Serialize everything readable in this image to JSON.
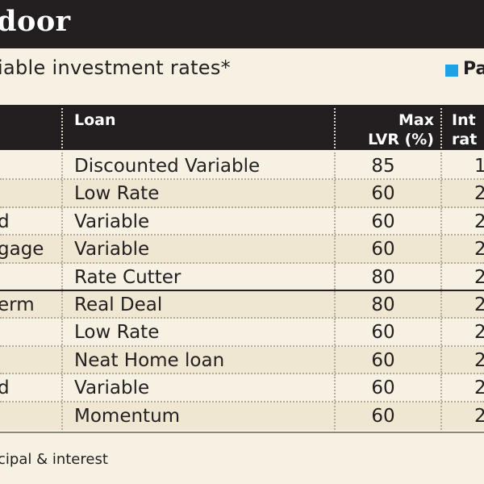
{
  "header": {
    "title": "door",
    "subtitle": "iable investment rates*",
    "legend_label": "Pa",
    "legend_color": "#1ba3e6"
  },
  "table": {
    "columns": {
      "loan": "Loan",
      "lvr_line1": "Max",
      "lvr_line2": "LVR (%)",
      "int_line1": "Int",
      "int_line2": "rat"
    },
    "rows": [
      {
        "name": "",
        "loan": "Discounted Variable",
        "lvr": "85",
        "rate": "1"
      },
      {
        "name": "",
        "loan": "Low Rate",
        "lvr": "60",
        "rate": "2"
      },
      {
        "name": "d",
        "loan": "Variable",
        "lvr": "60",
        "rate": "2"
      },
      {
        "name": "gage",
        "loan": "Variable",
        "lvr": "60",
        "rate": "2"
      },
      {
        "name": "",
        "loan": "Rate Cutter",
        "lvr": "80",
        "rate": "2"
      },
      {
        "name": "erm",
        "loan": "Real Deal",
        "lvr": "80",
        "rate": "2"
      },
      {
        "name": "",
        "loan": "Low Rate",
        "lvr": "60",
        "rate": "2"
      },
      {
        "name": "",
        "loan": "Neat Home loan",
        "lvr": "60",
        "rate": "2"
      },
      {
        "name": "d",
        "loan": "Variable",
        "lvr": "60",
        "rate": "2"
      },
      {
        "name": "",
        "loan": "Momentum",
        "lvr": "60",
        "rate": "2"
      }
    ]
  },
  "footer": {
    "note": "cipal & interest"
  }
}
